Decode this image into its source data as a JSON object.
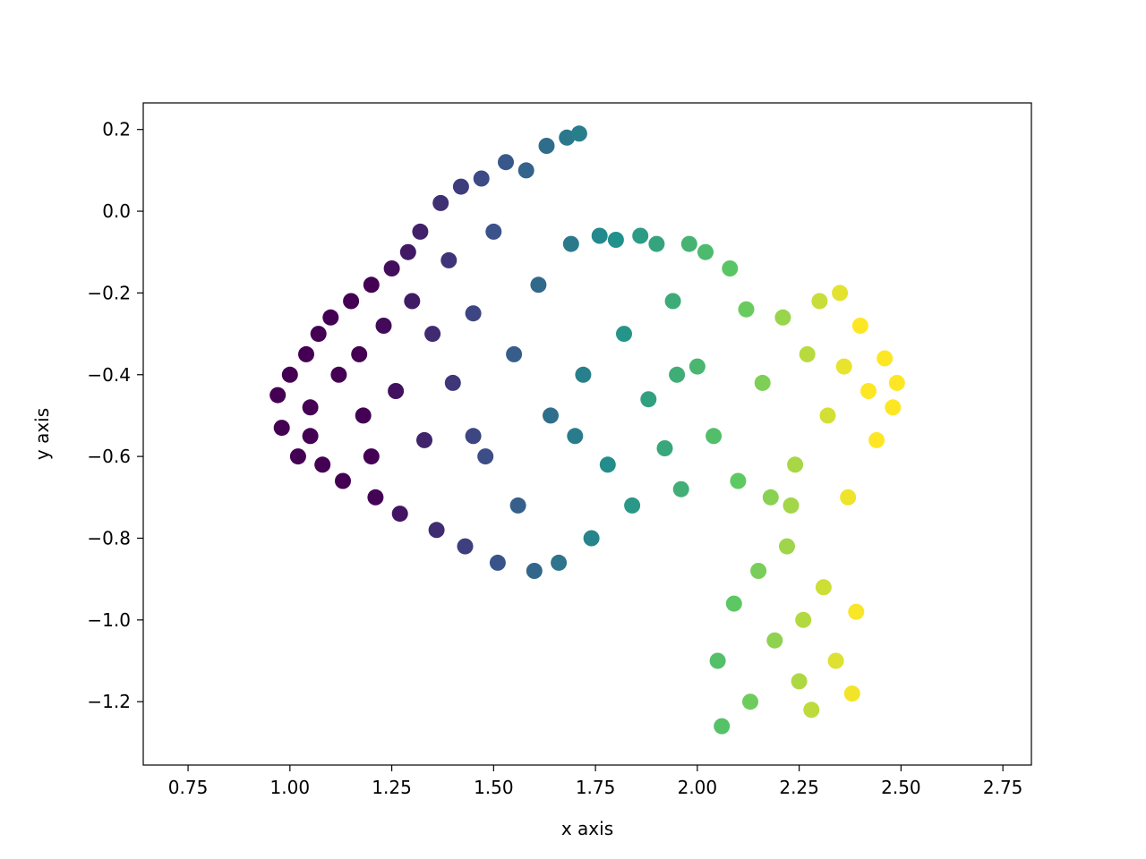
{
  "chart_data": {
    "type": "scatter",
    "title": "",
    "xlabel": "x axis",
    "ylabel": "y axis",
    "xlim": [
      0.64,
      2.82
    ],
    "ylim": [
      -1.355,
      0.265
    ],
    "grid": false,
    "legend": "none",
    "colormap": "viridis",
    "color_encodes": "x",
    "color_range": [
      1.2,
      2.4
    ],
    "marker_color_examples": [
      "#440154",
      "#3b528b",
      "#21918c",
      "#5ec962",
      "#fde725"
    ],
    "x_ticks": [
      0.75,
      1.0,
      1.25,
      1.5,
      1.75,
      2.0,
      2.25,
      2.5,
      2.75
    ],
    "x_tick_labels": [
      "0.75",
      "1.00",
      "1.25",
      "1.50",
      "1.75",
      "2.00",
      "2.25",
      "2.50",
      "2.75"
    ],
    "y_ticks": [
      0.2,
      0.0,
      -0.2,
      -0.4,
      -0.6,
      -0.8,
      -1.0,
      -1.2
    ],
    "y_tick_labels": [
      "0.2",
      "0.0",
      "−0.2",
      "−0.4",
      "−0.6",
      "−0.8",
      "−1.0",
      "−1.2"
    ],
    "points": [
      [
        0.97,
        -0.45
      ],
      [
        0.98,
        -0.53
      ],
      [
        1.0,
        -0.4
      ],
      [
        1.02,
        -0.6
      ],
      [
        1.04,
        -0.35
      ],
      [
        1.05,
        -0.48
      ],
      [
        1.07,
        -0.3
      ],
      [
        1.08,
        -0.62
      ],
      [
        1.1,
        -0.26
      ],
      [
        1.12,
        -0.4
      ],
      [
        1.13,
        -0.66
      ],
      [
        1.15,
        -0.22
      ],
      [
        1.17,
        -0.35
      ],
      [
        1.18,
        -0.5
      ],
      [
        1.2,
        -0.18
      ],
      [
        1.21,
        -0.7
      ],
      [
        1.23,
        -0.28
      ],
      [
        1.25,
        -0.14
      ],
      [
        1.26,
        -0.44
      ],
      [
        1.27,
        -0.74
      ],
      [
        1.29,
        -0.1
      ],
      [
        1.3,
        -0.22
      ],
      [
        1.32,
        -0.05
      ],
      [
        1.33,
        -0.56
      ],
      [
        1.35,
        -0.3
      ],
      [
        1.36,
        -0.78
      ],
      [
        1.37,
        0.02
      ],
      [
        1.39,
        -0.12
      ],
      [
        1.4,
        -0.42
      ],
      [
        1.42,
        0.06
      ],
      [
        1.43,
        -0.82
      ],
      [
        1.45,
        -0.25
      ],
      [
        1.47,
        0.08
      ],
      [
        1.48,
        -0.6
      ],
      [
        1.5,
        -0.05
      ],
      [
        1.51,
        -0.86
      ],
      [
        1.53,
        0.12
      ],
      [
        1.55,
        -0.35
      ],
      [
        1.56,
        -0.72
      ],
      [
        1.58,
        0.1
      ],
      [
        1.6,
        -0.88
      ],
      [
        1.61,
        -0.18
      ],
      [
        1.63,
        0.16
      ],
      [
        1.64,
        -0.5
      ],
      [
        1.66,
        -0.86
      ],
      [
        1.68,
        0.18
      ],
      [
        1.69,
        -0.08
      ],
      [
        1.71,
        0.19
      ],
      [
        1.72,
        -0.4
      ],
      [
        1.74,
        -0.8
      ],
      [
        1.76,
        -0.06
      ],
      [
        1.78,
        -0.62
      ],
      [
        1.8,
        -0.07
      ],
      [
        1.82,
        -0.3
      ],
      [
        1.84,
        -0.72
      ],
      [
        1.86,
        -0.06
      ],
      [
        1.88,
        -0.46
      ],
      [
        1.9,
        -0.08
      ],
      [
        1.92,
        -0.58
      ],
      [
        1.94,
        -0.22
      ],
      [
        1.96,
        -0.68
      ],
      [
        1.98,
        -0.08
      ],
      [
        2.0,
        -0.38
      ],
      [
        2.02,
        -0.1
      ],
      [
        2.04,
        -0.55
      ],
      [
        2.05,
        -1.1
      ],
      [
        2.06,
        -1.26
      ],
      [
        2.08,
        -0.14
      ],
      [
        2.09,
        -0.96
      ],
      [
        2.1,
        -0.66
      ],
      [
        2.12,
        -0.24
      ],
      [
        2.13,
        -1.2
      ],
      [
        2.15,
        -0.88
      ],
      [
        2.16,
        -0.42
      ],
      [
        2.18,
        -0.7
      ],
      [
        2.19,
        -1.05
      ],
      [
        2.21,
        -0.26
      ],
      [
        2.22,
        -0.82
      ],
      [
        2.24,
        -0.62
      ],
      [
        2.25,
        -1.15
      ],
      [
        2.27,
        -0.35
      ],
      [
        2.28,
        -1.22
      ],
      [
        2.3,
        -0.22
      ],
      [
        2.31,
        -0.92
      ],
      [
        2.32,
        -0.5
      ],
      [
        2.34,
        -1.1
      ],
      [
        2.35,
        -0.2
      ],
      [
        2.37,
        -0.7
      ],
      [
        2.38,
        -1.18
      ],
      [
        2.4,
        -0.28
      ],
      [
        2.42,
        -0.44
      ],
      [
        2.44,
        -0.56
      ],
      [
        2.46,
        -0.36
      ],
      [
        2.48,
        -0.48
      ],
      [
        2.49,
        -0.42
      ],
      [
        2.36,
        -0.38
      ],
      [
        2.26,
        -1.0
      ],
      [
        2.39,
        -0.98
      ],
      [
        2.23,
        -0.72
      ],
      [
        1.95,
        -0.4
      ],
      [
        1.7,
        -0.55
      ],
      [
        1.45,
        -0.55
      ],
      [
        1.2,
        -0.6
      ],
      [
        1.05,
        -0.55
      ]
    ]
  }
}
